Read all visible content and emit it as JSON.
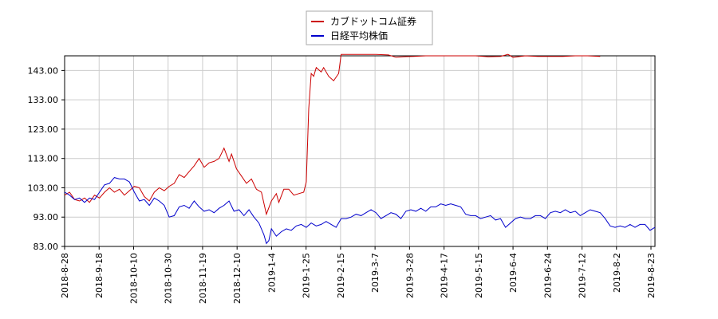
{
  "chart_data": {
    "type": "line",
    "title": "",
    "xlabel": "",
    "ylabel": "",
    "ylim": [
      83.0,
      148.0
    ],
    "grid": true,
    "legend_placement": "top-center",
    "y_ticks": [
      "83.00",
      "93.00",
      "103.00",
      "113.00",
      "123.00",
      "133.00",
      "143.00"
    ],
    "x_ticks": [
      "2018-8-28",
      "2018-9-18",
      "2018-10-10",
      "2018-10-30",
      "2018-11-19",
      "2018-12-10",
      "2019-1-4",
      "2019-1-25",
      "2019-2-15",
      "2019-3-7",
      "2019-3-28",
      "2019-4-17",
      "2019-5-15",
      "2019-6-4",
      "2019-6-24",
      "2019-7-12",
      "2019-8-2",
      "2019-8-23"
    ],
    "series": [
      {
        "name": "カブドットコム証券",
        "color": "#cc0000",
        "points": [
          [
            0,
            100.5
          ],
          [
            2,
            101.5
          ],
          [
            4,
            99.0
          ],
          [
            6,
            98.5
          ],
          [
            8,
            99.5
          ],
          [
            10,
            98.0
          ],
          [
            12,
            100.5
          ],
          [
            14,
            99.5
          ],
          [
            16,
            101.5
          ],
          [
            18,
            103.0
          ],
          [
            20,
            101.5
          ],
          [
            22,
            102.5
          ],
          [
            24,
            100.5
          ],
          [
            26,
            102.0
          ],
          [
            28,
            103.5
          ],
          [
            30,
            103.0
          ],
          [
            32,
            100.0
          ],
          [
            34,
            98.5
          ],
          [
            36,
            101.5
          ],
          [
            38,
            103.0
          ],
          [
            40,
            102.0
          ],
          [
            42,
            103.5
          ],
          [
            44,
            104.5
          ],
          [
            46,
            107.5
          ],
          [
            48,
            106.5
          ],
          [
            50,
            108.5
          ],
          [
            52,
            110.5
          ],
          [
            54,
            113.0
          ],
          [
            56,
            110.0
          ],
          [
            58,
            111.5
          ],
          [
            60,
            112.0
          ],
          [
            62,
            113.0
          ],
          [
            64,
            116.5
          ],
          [
            66,
            112.0
          ],
          [
            67,
            114.5
          ],
          [
            69,
            109.5
          ],
          [
            71,
            107.0
          ],
          [
            73,
            104.5
          ],
          [
            75,
            106.0
          ],
          [
            77,
            102.5
          ],
          [
            79,
            101.5
          ],
          [
            81,
            94.0
          ],
          [
            83,
            98.5
          ],
          [
            85,
            101.0
          ],
          [
            86,
            98.0
          ],
          [
            88,
            102.5
          ],
          [
            90,
            102.5
          ],
          [
            92,
            100.5
          ],
          [
            94,
            101.0
          ],
          [
            96,
            101.5
          ],
          [
            97,
            105.0
          ],
          [
            98,
            130.0
          ],
          [
            99,
            142.0
          ],
          [
            100,
            141.0
          ],
          [
            101,
            144.0
          ],
          [
            103,
            142.5
          ],
          [
            104,
            144.0
          ],
          [
            106,
            141.0
          ],
          [
            108,
            139.5
          ],
          [
            110,
            142.0
          ],
          [
            111,
            148.5
          ],
          [
            113,
            148.5
          ],
          [
            115,
            148.5
          ],
          [
            120,
            148.5
          ],
          [
            125,
            148.5
          ],
          [
            130,
            148.3
          ],
          [
            133,
            147.5
          ],
          [
            136,
            147.7
          ],
          [
            140,
            147.8
          ],
          [
            145,
            148.0
          ],
          [
            150,
            148.0
          ],
          [
            155,
            148.0
          ],
          [
            160,
            148.0
          ],
          [
            165,
            148.0
          ],
          [
            170,
            147.7
          ],
          [
            175,
            147.8
          ],
          [
            178,
            148.5
          ],
          [
            180,
            147.5
          ],
          [
            185,
            148.0
          ],
          [
            190,
            147.8
          ],
          [
            195,
            147.8
          ],
          [
            200,
            147.8
          ],
          [
            205,
            148.0
          ],
          [
            210,
            148.0
          ],
          [
            215,
            147.8
          ]
        ]
      },
      {
        "name": "日経平均株価",
        "color": "#0000cc",
        "points": [
          [
            0,
            101.5
          ],
          [
            2,
            100.5
          ],
          [
            4,
            99.0
          ],
          [
            6,
            99.5
          ],
          [
            8,
            98.0
          ],
          [
            10,
            99.5
          ],
          [
            12,
            99.0
          ],
          [
            14,
            101.5
          ],
          [
            16,
            104.0
          ],
          [
            18,
            104.5
          ],
          [
            20,
            106.5
          ],
          [
            22,
            106.0
          ],
          [
            24,
            106.0
          ],
          [
            26,
            105.0
          ],
          [
            28,
            101.5
          ],
          [
            30,
            98.5
          ],
          [
            32,
            99.0
          ],
          [
            34,
            97.0
          ],
          [
            36,
            99.5
          ],
          [
            38,
            98.5
          ],
          [
            40,
            97.0
          ],
          [
            42,
            93.0
          ],
          [
            44,
            93.5
          ],
          [
            46,
            96.5
          ],
          [
            48,
            97.0
          ],
          [
            50,
            96.0
          ],
          [
            52,
            98.5
          ],
          [
            54,
            96.5
          ],
          [
            56,
            95.0
          ],
          [
            58,
            95.5
          ],
          [
            60,
            94.5
          ],
          [
            62,
            96.0
          ],
          [
            64,
            97.0
          ],
          [
            66,
            98.5
          ],
          [
            68,
            95.0
          ],
          [
            70,
            95.5
          ],
          [
            72,
            93.5
          ],
          [
            74,
            95.5
          ],
          [
            76,
            93.0
          ],
          [
            78,
            91.0
          ],
          [
            80,
            87.0
          ],
          [
            81,
            84.0
          ],
          [
            82,
            85.0
          ],
          [
            83,
            89.0
          ],
          [
            85,
            86.5
          ],
          [
            87,
            88.0
          ],
          [
            89,
            89.0
          ],
          [
            91,
            88.5
          ],
          [
            93,
            90.0
          ],
          [
            95,
            90.5
          ],
          [
            97,
            89.5
          ],
          [
            99,
            91.0
          ],
          [
            101,
            90.0
          ],
          [
            103,
            90.5
          ],
          [
            105,
            91.5
          ],
          [
            107,
            90.5
          ],
          [
            109,
            89.5
          ],
          [
            111,
            92.5
          ],
          [
            113,
            92.5
          ],
          [
            115,
            93.0
          ],
          [
            117,
            94.0
          ],
          [
            119,
            93.5
          ],
          [
            121,
            94.5
          ],
          [
            123,
            95.5
          ],
          [
            125,
            94.5
          ],
          [
            127,
            92.5
          ],
          [
            129,
            93.5
          ],
          [
            131,
            94.5
          ],
          [
            133,
            94.0
          ],
          [
            135,
            92.5
          ],
          [
            137,
            95.0
          ],
          [
            139,
            95.5
          ],
          [
            141,
            95.0
          ],
          [
            143,
            96.0
          ],
          [
            145,
            95.0
          ],
          [
            147,
            96.5
          ],
          [
            149,
            96.5
          ],
          [
            151,
            97.5
          ],
          [
            153,
            97.0
          ],
          [
            155,
            97.5
          ],
          [
            157,
            97.0
          ],
          [
            159,
            96.5
          ],
          [
            161,
            94.0
          ],
          [
            163,
            93.5
          ],
          [
            165,
            93.5
          ],
          [
            167,
            92.5
          ],
          [
            169,
            93.0
          ],
          [
            171,
            93.5
          ],
          [
            173,
            92.0
          ],
          [
            175,
            92.5
          ],
          [
            177,
            89.5
          ],
          [
            179,
            91.0
          ],
          [
            181,
            92.5
          ],
          [
            183,
            93.0
          ],
          [
            185,
            92.5
          ],
          [
            187,
            92.5
          ],
          [
            189,
            93.5
          ],
          [
            191,
            93.5
          ],
          [
            193,
            92.5
          ],
          [
            195,
            94.5
          ],
          [
            197,
            95.0
          ],
          [
            199,
            94.5
          ],
          [
            201,
            95.5
          ],
          [
            203,
            94.5
          ],
          [
            205,
            95.0
          ],
          [
            207,
            93.5
          ],
          [
            209,
            94.5
          ],
          [
            211,
            95.5
          ],
          [
            213,
            95.0
          ],
          [
            215,
            94.5
          ],
          [
            217,
            92.5
          ],
          [
            219,
            90.0
          ],
          [
            221,
            89.5
          ],
          [
            223,
            90.0
          ],
          [
            225,
            89.5
          ],
          [
            227,
            90.5
          ],
          [
            229,
            89.5
          ],
          [
            231,
            90.5
          ],
          [
            233,
            90.5
          ],
          [
            235,
            88.5
          ],
          [
            237,
            89.5
          ]
        ]
      }
    ]
  }
}
